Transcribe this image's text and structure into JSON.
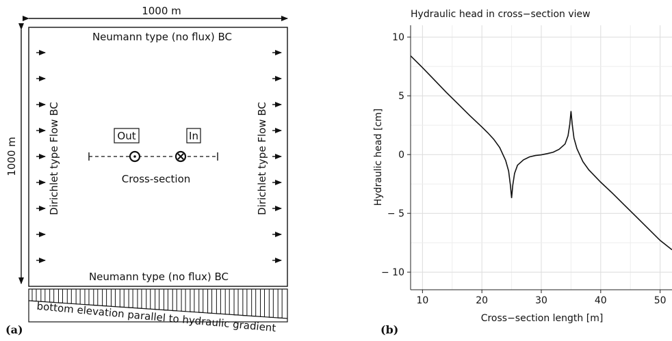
{
  "left_diagram": {
    "panel_label": "(a)",
    "width_label": "1000 m",
    "height_label": "1000 m",
    "top_bc": "Neumann type (no flux) BC",
    "bottom_bc": "Neumann type (no flux) BC",
    "left_bc": "Dirichlet type Flow BC",
    "right_bc": "Dirichlet type Flow BC",
    "out_label": "Out",
    "in_label": "In",
    "section_label": "Cross-section",
    "bottom_note": "bottom elevation parallel to hydraulic gradient"
  },
  "right_chart": {
    "panel_label": "(b)",
    "title": "Hydraulic head in cross−section view",
    "xlabel": "Cross−section length [m]",
    "ylabel": "Hydraulic head [cm]",
    "xticks": [
      "10",
      "20",
      "30",
      "40",
      "50"
    ],
    "yticks": [
      "10",
      "5",
      "0",
      "− 5",
      "− 10"
    ]
  },
  "chart_data": {
    "type": "line",
    "title": "Hydraulic head in cross−section view",
    "xlabel": "Cross−section length [m]",
    "ylabel": "Hydraulic head [cm]",
    "xlim": [
      8,
      52
    ],
    "ylim": [
      -11.5,
      11
    ],
    "x_ticks": [
      10,
      20,
      30,
      40,
      50
    ],
    "y_ticks": [
      -10,
      -5,
      0,
      5,
      10
    ],
    "grid": true,
    "series": [
      {
        "points": [
          [
            8,
            8.4
          ],
          [
            10,
            7.4
          ],
          [
            12,
            6.35
          ],
          [
            14,
            5.3
          ],
          [
            16,
            4.3
          ],
          [
            18,
            3.3
          ],
          [
            20,
            2.35
          ],
          [
            21,
            1.85
          ],
          [
            22,
            1.3
          ],
          [
            23,
            0.6
          ],
          [
            24,
            -0.5
          ],
          [
            24.5,
            -1.4
          ],
          [
            24.8,
            -2.6
          ],
          [
            25,
            -3.7
          ],
          [
            25.2,
            -2.6
          ],
          [
            25.5,
            -1.6
          ],
          [
            26,
            -0.9
          ],
          [
            27,
            -0.45
          ],
          [
            28,
            -0.2
          ],
          [
            29,
            -0.08
          ],
          [
            30,
            -0.02
          ],
          [
            31,
            0.08
          ],
          [
            32,
            0.2
          ],
          [
            33,
            0.45
          ],
          [
            34,
            0.9
          ],
          [
            34.5,
            1.6
          ],
          [
            34.8,
            2.6
          ],
          [
            35,
            3.7
          ],
          [
            35.2,
            2.6
          ],
          [
            35.5,
            1.4
          ],
          [
            36,
            0.5
          ],
          [
            37,
            -0.6
          ],
          [
            38,
            -1.3
          ],
          [
            40,
            -2.35
          ],
          [
            42,
            -3.3
          ],
          [
            44,
            -4.3
          ],
          [
            46,
            -5.3
          ],
          [
            48,
            -6.3
          ],
          [
            50,
            -7.3
          ],
          [
            52,
            -8.1
          ]
        ]
      }
    ]
  }
}
